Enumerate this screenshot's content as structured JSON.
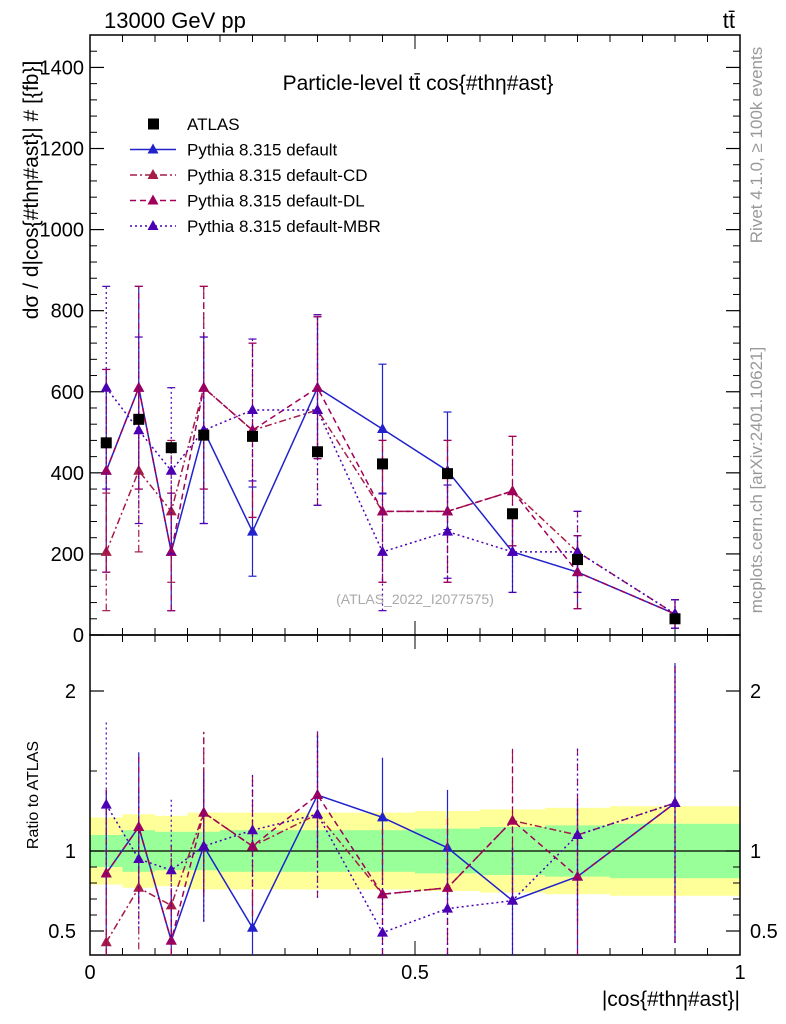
{
  "header": {
    "energy": "13000 GeV pp",
    "process": "tt̄"
  },
  "side_labels": {
    "rivet": "Rivet 4.1.0, ≥ 100k events",
    "mcplots": "mcplots.cern.ch [arXiv:2401.10621]"
  },
  "chart_data": [
    {
      "type": "scatter",
      "title": "Particle-level tt̄ cos{#thη#ast}",
      "xlabel": "|cos{#thη#ast}|",
      "ylabel": "dσ / d|cos{#thη#ast}| # [{fb}]",
      "watermark": "(ATLAS_2022_I2077575)",
      "xlim": [
        0,
        1
      ],
      "ylim": [
        0,
        1480
      ],
      "yticks": [
        0,
        200,
        400,
        600,
        800,
        1000,
        1200,
        1400
      ],
      "legend_position": "top-left",
      "data": {
        "name": "ATLAS",
        "x": [
          0.025,
          0.075,
          0.125,
          0.175,
          0.25,
          0.35,
          0.45,
          0.55,
          0.65,
          0.75,
          0.9
        ],
        "y": [
          474,
          532,
          462,
          493,
          490,
          452,
          422,
          398,
          299,
          186,
          40
        ]
      },
      "series": [
        {
          "name": "Pythia 8.315 default",
          "style": "solid",
          "color": "#2222cc",
          "x": [
            0.025,
            0.075,
            0.125,
            0.175,
            0.25,
            0.35,
            0.45,
            0.55,
            0.65,
            0.75,
            0.9
          ],
          "y": [
            405,
            610,
            205,
            505,
            255,
            610,
            508,
            405,
            205,
            155,
            52
          ],
          "err": [
            250,
            250,
            145,
            230,
            110,
            175,
            160,
            145,
            100,
            90,
            35
          ]
        },
        {
          "name": "Pythia 8.315 default-CD",
          "style": "dashdot",
          "color": "#a51c47",
          "x": [
            0.025,
            0.075,
            0.125,
            0.175,
            0.25,
            0.35,
            0.45,
            0.55,
            0.65,
            0.75,
            0.9
          ],
          "y": [
            205,
            405,
            305,
            610,
            505,
            555,
            305,
            305,
            355,
            205,
            52
          ],
          "err": [
            145,
            200,
            175,
            250,
            215,
            235,
            175,
            175,
            135,
            100,
            35
          ]
        },
        {
          "name": "Pythia 8.315 default-DL",
          "style": "dashed",
          "color": "#a0005a",
          "x": [
            0.025,
            0.075,
            0.125,
            0.175,
            0.25,
            0.35,
            0.45,
            0.55,
            0.65,
            0.75,
            0.9
          ],
          "y": [
            405,
            610,
            205,
            610,
            505,
            610,
            305,
            305,
            355,
            155,
            52
          ],
          "err": [
            250,
            250,
            145,
            250,
            215,
            175,
            175,
            175,
            135,
            90,
            35
          ]
        },
        {
          "name": "Pythia 8.315 default-MBR",
          "style": "dotted",
          "color": "#4b00b4",
          "x": [
            0.025,
            0.075,
            0.125,
            0.175,
            0.25,
            0.35,
            0.45,
            0.55,
            0.65,
            0.75,
            0.9
          ],
          "y": [
            610,
            505,
            405,
            505,
            555,
            555,
            205,
            255,
            205,
            205,
            52
          ],
          "err": [
            250,
            230,
            205,
            230,
            175,
            235,
            145,
            115,
            100,
            100,
            35
          ]
        }
      ]
    },
    {
      "type": "scatter",
      "title": "",
      "xlabel": "|cos{#thη#ast}|",
      "ylabel": "Ratio to ATLAS",
      "xlim": [
        0,
        1
      ],
      "ylim": [
        0.35,
        2.35
      ],
      "yticks": [
        0.5,
        1,
        2
      ],
      "ytick_labels": [
        "0.5",
        "1",
        "2"
      ],
      "xticks": [
        0,
        0.5,
        1
      ],
      "xtick_labels": [
        "0",
        "0.5",
        "1"
      ],
      "bins": [
        0,
        0.05,
        0.1,
        0.15,
        0.2,
        0.3,
        0.4,
        0.5,
        0.6,
        0.7,
        0.8,
        1.0
      ],
      "band_inner": [
        0.1,
        0.13,
        0.12,
        0.12,
        0.13,
        0.13,
        0.13,
        0.14,
        0.15,
        0.16,
        0.17
      ],
      "band_outer": [
        0.21,
        0.23,
        0.22,
        0.24,
        0.24,
        0.24,
        0.24,
        0.25,
        0.26,
        0.27,
        0.28
      ],
      "series": [
        {
          "name": "Pythia 8.315 default",
          "y": [
            0.86,
            1.15,
            0.44,
            1.03,
            0.52,
            1.35,
            1.21,
            1.02,
            0.69,
            0.84,
            1.3
          ]
        },
        {
          "name": "Pythia 8.315 default-CD",
          "y": [
            0.43,
            0.77,
            0.66,
            1.24,
            1.03,
            1.23,
            0.73,
            0.77,
            1.19,
            1.1,
            1.3
          ]
        },
        {
          "name": "Pythia 8.315 default-DL",
          "y": [
            0.86,
            1.15,
            0.44,
            1.24,
            1.03,
            1.35,
            0.73,
            0.77,
            1.19,
            0.84,
            1.3
          ]
        },
        {
          "name": "Pythia 8.315 default-MBR",
          "y": [
            1.29,
            0.95,
            0.88,
            1.03,
            1.13,
            1.23,
            0.49,
            0.64,
            0.69,
            1.1,
            1.3
          ]
        }
      ]
    }
  ]
}
